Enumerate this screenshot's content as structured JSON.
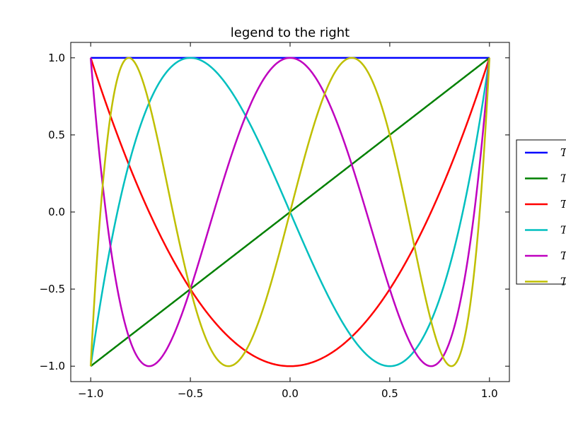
{
  "chart_data": {
    "type": "line",
    "title": "legend to the right",
    "xlabel": "",
    "ylabel": "",
    "xlim": [
      -1.1,
      1.1
    ],
    "ylim": [
      -1.1,
      1.1
    ],
    "xticks": [
      -1.0,
      -0.5,
      0.0,
      0.5,
      1.0
    ],
    "yticks": [
      -1.0,
      -0.5,
      0.0,
      0.5,
      1.0
    ],
    "xtick_labels": [
      "−1.0",
      "−0.5",
      "0.0",
      "0.5",
      "1.0"
    ],
    "ytick_labels": [
      "−1.0",
      "−0.5",
      "0.0",
      "0.5",
      "1.0"
    ],
    "grid": false,
    "legend_placement": "right, outside",
    "series": [
      {
        "name": "T",
        "function": "chebyshev_T",
        "degree": 0,
        "color": "#0000ff",
        "x_range": [
          -1,
          1
        ]
      },
      {
        "name": "T",
        "function": "chebyshev_T",
        "degree": 1,
        "color": "#008000",
        "x_range": [
          -1,
          1
        ]
      },
      {
        "name": "T",
        "function": "chebyshev_T",
        "degree": 2,
        "color": "#ff0000",
        "x_range": [
          -1,
          1
        ]
      },
      {
        "name": "T",
        "function": "chebyshev_T",
        "degree": 3,
        "color": "#00bfbf",
        "x_range": [
          -1,
          1
        ]
      },
      {
        "name": "T",
        "function": "chebyshev_T",
        "degree": 4,
        "color": "#bf00bf",
        "x_range": [
          -1,
          1
        ]
      },
      {
        "name": "T",
        "function": "chebyshev_T",
        "degree": 5,
        "color": "#bfbf00",
        "x_range": [
          -1,
          1
        ]
      }
    ]
  }
}
